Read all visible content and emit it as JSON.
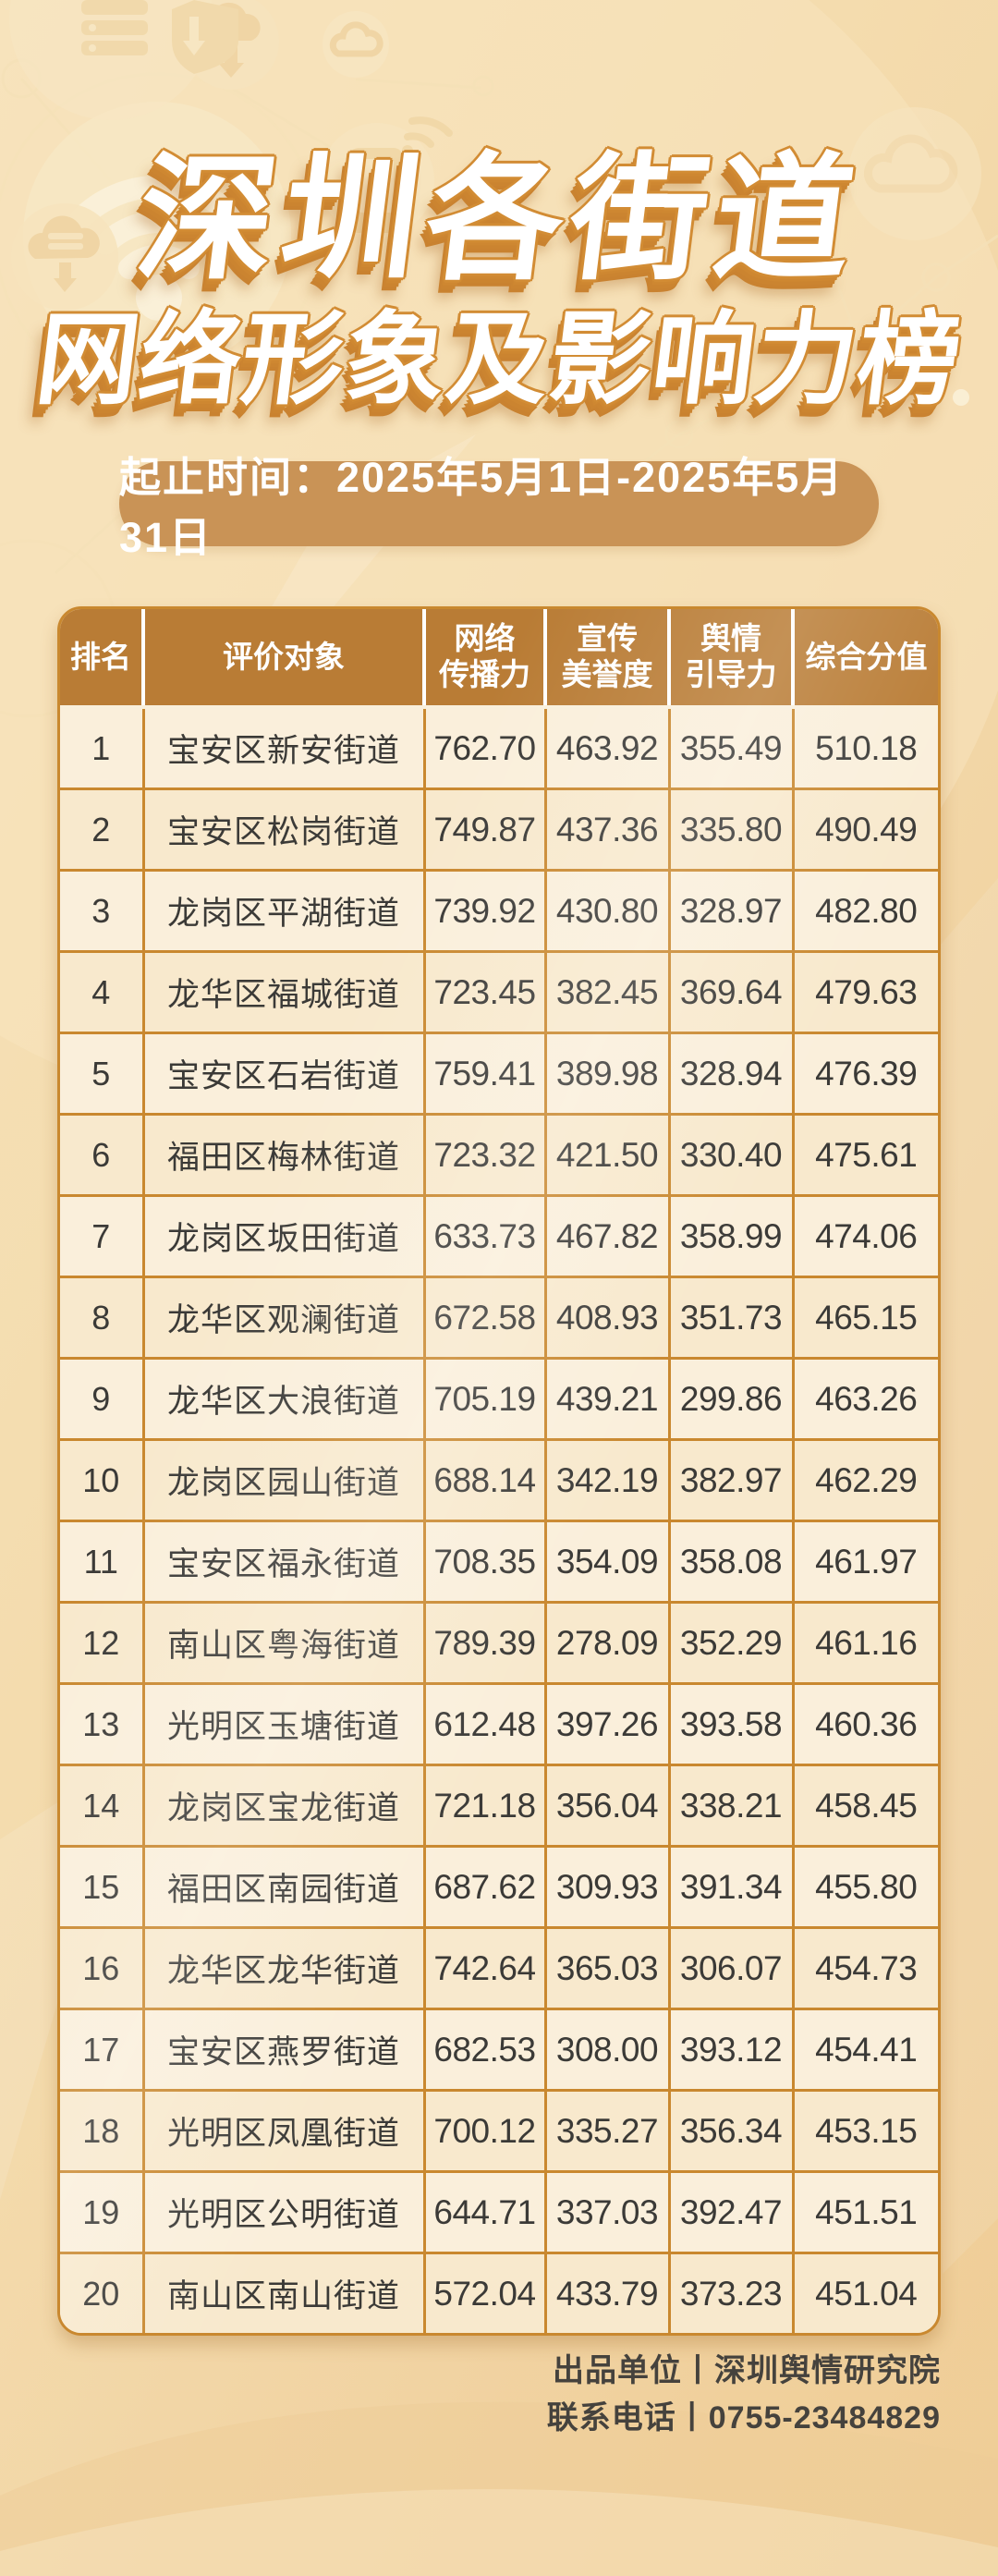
{
  "title": {
    "line1": "深圳各街道",
    "line2": "网络形象及影响力榜"
  },
  "period_banner": {
    "text": "起止时间：2025年5月1日-2025年5月31日"
  },
  "table": {
    "columns": [
      {
        "id": "rank",
        "lines": [
          "排名"
        ]
      },
      {
        "id": "subject",
        "lines": [
          "评价对象"
        ]
      },
      {
        "id": "network-spread",
        "lines": [
          "网络",
          "传播力"
        ]
      },
      {
        "id": "publicity-reputation",
        "lines": [
          "宣传",
          "美誉度"
        ]
      },
      {
        "id": "opinion-guidance",
        "lines": [
          "舆情",
          "引导力"
        ]
      },
      {
        "id": "composite-score",
        "lines": [
          "综合分值"
        ]
      }
    ]
  },
  "footer": {
    "line1": "出品单位丨深圳舆情研究院",
    "line2": "联系电话丨0755-23484829"
  },
  "colors": {
    "background_top": "#F6E2BA",
    "background_bottom": "#EFCD96",
    "header_bg": "#B97C35",
    "table_border": "#C9882F",
    "row_odd": "#FAEFDB",
    "row_even": "#F8E9CD",
    "pill_bg": "#C99356",
    "title_outline": "#D28C34",
    "text_dark": "#3B3A37"
  },
  "chart_data": {
    "type": "table",
    "title": "深圳各街道网络形象及影响力榜",
    "period": "2025年5月1日-2025年5月31日",
    "columns": [
      "排名",
      "评价对象",
      "网络传播力",
      "宣传美誉度",
      "舆情引导力",
      "综合分值"
    ],
    "rows": [
      [
        1,
        "宝安区新安街道",
        762.7,
        463.92,
        355.49,
        510.18
      ],
      [
        2,
        "宝安区松岗街道",
        749.87,
        437.36,
        335.8,
        490.49
      ],
      [
        3,
        "龙岗区平湖街道",
        739.92,
        430.8,
        328.97,
        482.8
      ],
      [
        4,
        "龙华区福城街道",
        723.45,
        382.45,
        369.64,
        479.63
      ],
      [
        5,
        "宝安区石岩街道",
        759.41,
        389.98,
        328.94,
        476.39
      ],
      [
        6,
        "福田区梅林街道",
        723.32,
        421.5,
        330.4,
        475.61
      ],
      [
        7,
        "龙岗区坂田街道",
        633.73,
        467.82,
        358.99,
        474.06
      ],
      [
        8,
        "龙华区观澜街道",
        672.58,
        408.93,
        351.73,
        465.15
      ],
      [
        9,
        "龙华区大浪街道",
        705.19,
        439.21,
        299.86,
        463.26
      ],
      [
        10,
        "龙岗区园山街道",
        688.14,
        342.19,
        382.97,
        462.29
      ],
      [
        11,
        "宝安区福永街道",
        708.35,
        354.09,
        358.08,
        461.97
      ],
      [
        12,
        "南山区粤海街道",
        789.39,
        278.09,
        352.29,
        461.16
      ],
      [
        13,
        "光明区玉塘街道",
        612.48,
        397.26,
        393.58,
        460.36
      ],
      [
        14,
        "龙岗区宝龙街道",
        721.18,
        356.04,
        338.21,
        458.45
      ],
      [
        15,
        "福田区南园街道",
        687.62,
        309.93,
        391.34,
        455.8
      ],
      [
        16,
        "龙华区龙华街道",
        742.64,
        365.03,
        306.07,
        454.73
      ],
      [
        17,
        "宝安区燕罗街道",
        682.53,
        308.0,
        393.12,
        454.41
      ],
      [
        18,
        "光明区凤凰街道",
        700.12,
        335.27,
        356.34,
        453.15
      ],
      [
        19,
        "光明区公明街道",
        644.71,
        337.03,
        392.47,
        451.51
      ],
      [
        20,
        "南山区南山街道",
        572.04,
        433.79,
        373.23,
        451.04
      ]
    ]
  }
}
